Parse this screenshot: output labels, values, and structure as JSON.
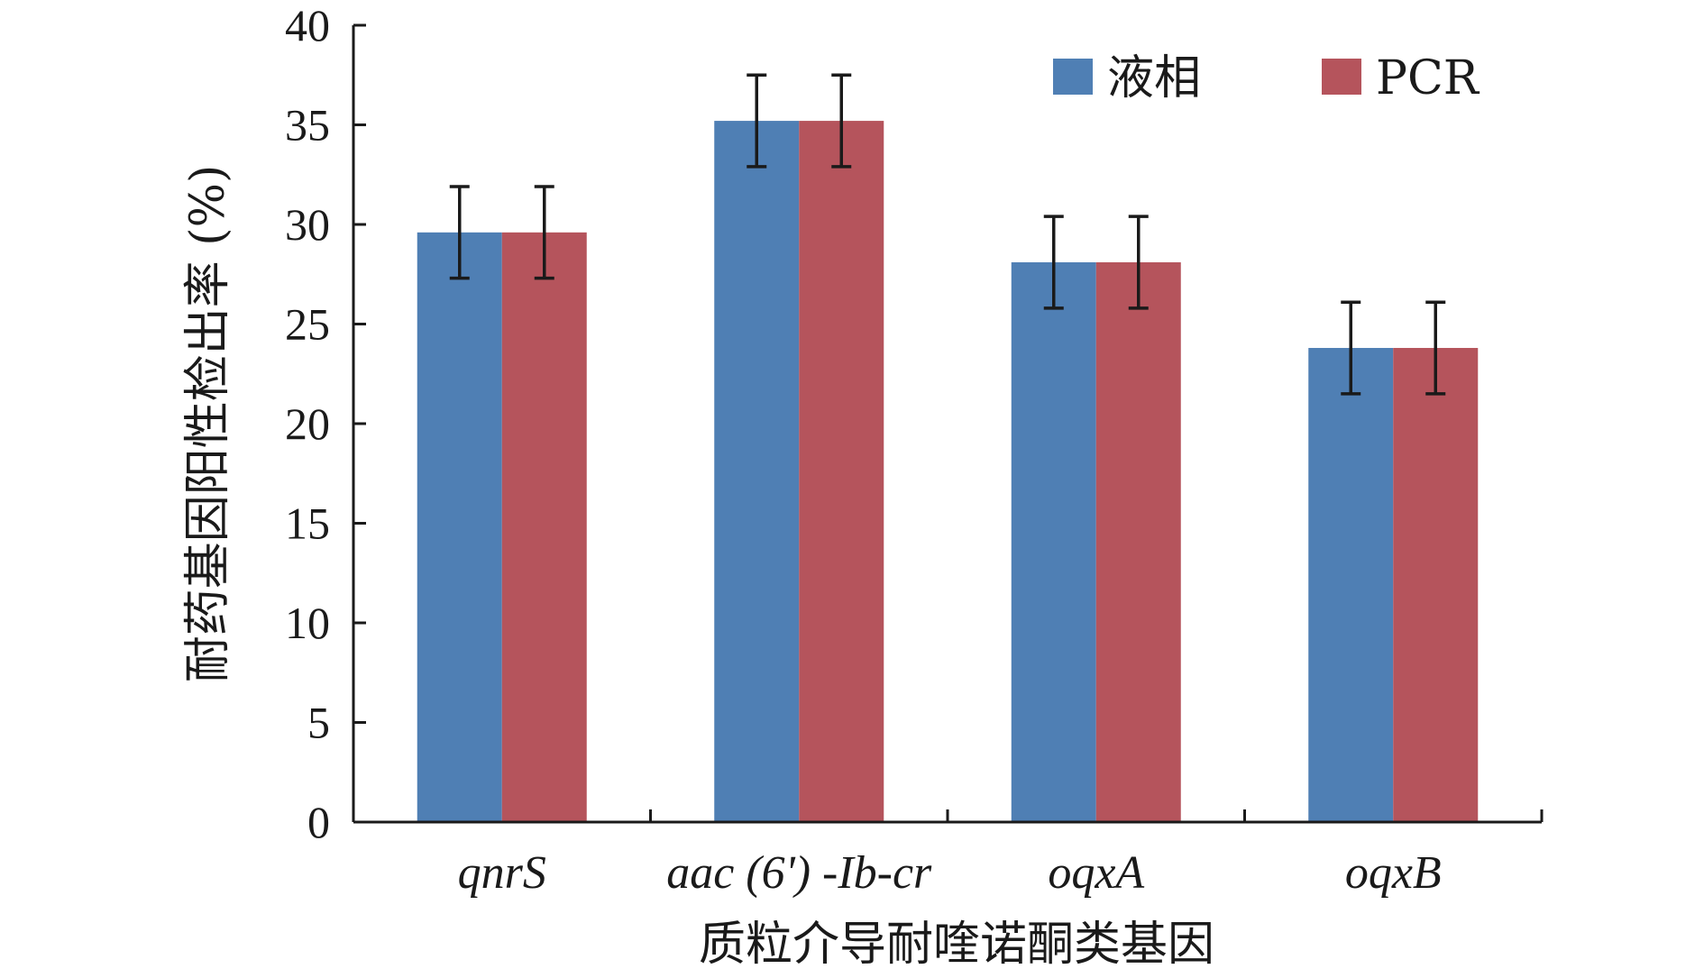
{
  "chart_data": {
    "type": "bar",
    "title": "",
    "xlabel": "质粒介导耐喹诺酮类基因",
    "ylabel": "耐药基因阳性检出率 (%)",
    "ylim": [
      0,
      40
    ],
    "yticks": [
      0,
      5,
      10,
      15,
      20,
      25,
      30,
      35,
      40
    ],
    "categories": [
      "qnrS",
      "aac (6') -Ib-cr",
      "oqxA",
      "oqxB"
    ],
    "series": [
      {
        "name": "液相",
        "color": "#4f7fb4",
        "values": [
          29.6,
          35.2,
          28.1,
          23.8
        ],
        "error": [
          2.3,
          2.3,
          2.3,
          2.3
        ]
      },
      {
        "name": "PCR",
        "color": "#b5545c",
        "values": [
          29.6,
          35.2,
          28.1,
          23.8
        ],
        "error": [
          2.3,
          2.3,
          2.3,
          2.3
        ]
      }
    ],
    "legend": "top-right",
    "grid": false
  }
}
